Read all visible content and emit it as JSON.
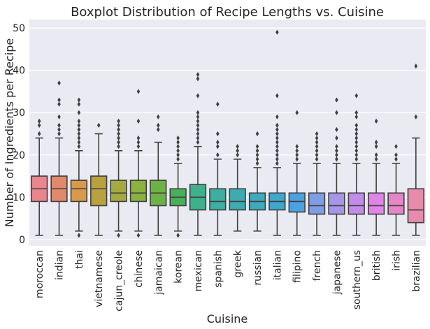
{
  "chart_data": {
    "type": "boxplot",
    "title": "Boxplot Distribution of Recipe Lengths vs. Cuisine",
    "xlabel": "Cuisine",
    "ylabel": "Number of Ingredients per Recipe",
    "ylim": [
      -1.5,
      52
    ],
    "yticks": [
      0,
      10,
      20,
      30,
      40,
      50
    ],
    "grid": true,
    "series": [
      {
        "category": "moroccan",
        "color": "#e8858e",
        "min": 1,
        "q1": 9,
        "median": 12,
        "q3": 15,
        "max": 24,
        "outliers": [
          25,
          27,
          28
        ]
      },
      {
        "category": "indian",
        "color": "#e1896b",
        "min": 1,
        "q1": 9,
        "median": 12,
        "q3": 15,
        "max": 24,
        "outliers": [
          25,
          26,
          27,
          29,
          32,
          33,
          37
        ]
      },
      {
        "category": "thai",
        "color": "#d89a4a",
        "min": 2,
        "q1": 9,
        "median": 12,
        "q3": 14,
        "max": 21,
        "outliers": [
          1,
          22,
          23,
          24,
          25,
          26,
          27,
          28,
          30,
          32,
          33
        ]
      },
      {
        "category": "vietnamese",
        "color": "#b9a13f",
        "min": 1,
        "q1": 8,
        "median": 12,
        "q3": 15,
        "max": 25,
        "outliers": [
          27
        ]
      },
      {
        "category": "cajun_creole",
        "color": "#a5aa40",
        "min": 2,
        "q1": 9,
        "median": 11,
        "q3": 14,
        "max": 21,
        "outliers": [
          1,
          22,
          23,
          24,
          25,
          26,
          27,
          28
        ]
      },
      {
        "category": "chinese",
        "color": "#8bb23f",
        "min": 2,
        "q1": 9,
        "median": 11,
        "q3": 14,
        "max": 21,
        "outliers": [
          1,
          22,
          23,
          24,
          28,
          35
        ]
      },
      {
        "category": "jamaican",
        "color": "#6cb245",
        "min": 1,
        "q1": 8,
        "median": 11,
        "q3": 14,
        "max": 23,
        "outliers": [
          26,
          27,
          29
        ]
      },
      {
        "category": "korean",
        "color": "#49b05a",
        "min": 2,
        "q1": 8,
        "median": 10,
        "q3": 12,
        "max": 18,
        "outliers": [
          1,
          19,
          20,
          21,
          22,
          23,
          24
        ]
      },
      {
        "category": "mexican",
        "color": "#3eb08a",
        "min": 1,
        "q1": 7,
        "median": 10,
        "q3": 13,
        "max": 22,
        "outliers": [
          23,
          24,
          25,
          26,
          27,
          28,
          29,
          30,
          34,
          38,
          39
        ]
      },
      {
        "category": "spanish",
        "color": "#3eaea0",
        "min": 1,
        "q1": 7,
        "median": 9,
        "q3": 12,
        "max": 19,
        "outliers": [
          20,
          22,
          23,
          25,
          32
        ]
      },
      {
        "category": "greek",
        "color": "#3eacaf",
        "min": 2,
        "q1": 7,
        "median": 9,
        "q3": 12,
        "max": 19,
        "outliers": [
          20,
          21,
          22
        ]
      },
      {
        "category": "russian",
        "color": "#3faabd",
        "min": 2,
        "q1": 7,
        "median": 9,
        "q3": 11,
        "max": 17,
        "outliers": [
          18,
          19,
          20,
          21,
          22,
          25
        ]
      },
      {
        "category": "italian",
        "color": "#40a7cc",
        "min": 1,
        "q1": 7,
        "median": 9,
        "q3": 11,
        "max": 17,
        "outliers": [
          18,
          19,
          20,
          21,
          22,
          23,
          24,
          25,
          26,
          27,
          29,
          34,
          49
        ]
      },
      {
        "category": "filipino",
        "color": "#4aa2e0",
        "min": 1,
        "q1": 6.5,
        "median": 9,
        "q3": 11,
        "max": 18,
        "outliers": [
          19,
          20,
          21,
          22,
          30
        ]
      },
      {
        "category": "french",
        "color": "#7f9de4",
        "min": 1,
        "q1": 6,
        "median": 8,
        "q3": 11,
        "max": 18,
        "outliers": [
          19,
          20,
          21,
          22,
          23,
          24,
          25
        ]
      },
      {
        "category": "japanese",
        "color": "#a596e8",
        "min": 1,
        "q1": 6,
        "median": 8,
        "q3": 11,
        "max": 18,
        "outliers": [
          19,
          20,
          21,
          22,
          24,
          26,
          30,
          33
        ]
      },
      {
        "category": "southern_us",
        "color": "#c38cea",
        "min": 1,
        "q1": 6,
        "median": 8,
        "q3": 11,
        "max": 18,
        "outliers": [
          19,
          20,
          21,
          22,
          23,
          24,
          25,
          26,
          27,
          29,
          30,
          34
        ]
      },
      {
        "category": "british",
        "color": "#df85e5",
        "min": 1,
        "q1": 6,
        "median": 8,
        "q3": 11,
        "max": 18,
        "outliers": [
          19,
          20,
          22,
          23,
          28
        ]
      },
      {
        "category": "irish",
        "color": "#e785c9",
        "min": 1,
        "q1": 6,
        "median": 8,
        "q3": 11,
        "max": 18,
        "outliers": [
          19,
          20,
          22
        ]
      },
      {
        "category": "brazilian",
        "color": "#e88aa9",
        "min": 1,
        "q1": 4,
        "median": 7,
        "q3": 12,
        "max": 24,
        "outliers": [
          29,
          41
        ]
      }
    ]
  }
}
